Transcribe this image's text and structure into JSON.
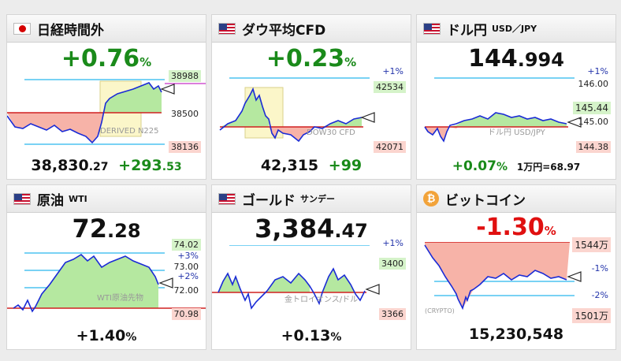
{
  "colors": {
    "up": "#1a8a1a",
    "down": "#e01010",
    "area_up": "#b5e8a0",
    "area_down": "#f7b3a8",
    "line": "#1a2bd6",
    "ref_line": "#d02020",
    "band_line": "#4dc3f0"
  },
  "cards": [
    {
      "title": "日経時間外",
      "subtitle": "",
      "flag": "jp-flag-icon",
      "change": "+0.76",
      "change_unit": "%",
      "labels": {
        "top": "38988",
        "mid": "38500",
        "bottom": "38136"
      },
      "watermark": "DERIVED N225",
      "bottom": {
        "price_main": "38,830",
        "price_dec": ".27",
        "delta_main": "+293",
        "delta_dec": ".53"
      }
    },
    {
      "title": "ダウ平均CFD",
      "subtitle": "",
      "flag": "us-flag-icon",
      "change": "+0.23",
      "change_unit": "%",
      "labels": {
        "pct": "+1%",
        "top": "42534",
        "bottom": "42071"
      },
      "watermark": "DOW30 CFD",
      "bottom": {
        "price": "42,315",
        "delta": "+99"
      }
    },
    {
      "title": "ドル円",
      "subtitle": "USD／JPY",
      "flag": "us-flag-icon",
      "price_main": "144",
      "price_dec": ".994",
      "labels": {
        "pct": "+1%",
        "top": "146.00",
        "mid": "145.44",
        "mid2": "145.00",
        "bottom": "144.38"
      },
      "watermark": "ドル円 USD/JPY",
      "bottom": {
        "change": "+0.07",
        "change_unit": "%",
        "conv": "1万円=68.97"
      }
    },
    {
      "title": "原油",
      "subtitle": "WTI",
      "flag": "us-flag-icon",
      "price_main": "72",
      "price_dec": ".28",
      "labels": {
        "top": "74.02",
        "p3": "+3%",
        "mid": "73.00",
        "p2": "+2%",
        "low": "72.00",
        "bottom": "70.98"
      },
      "watermark": "WTI原油先物",
      "bottom": {
        "change": "+1.40",
        "change_unit": "%"
      }
    },
    {
      "title": "ゴールド",
      "subtitle": "サンデー",
      "flag": "us-flag-icon",
      "price_main": "3,384",
      "price_dec": ".47",
      "labels": {
        "pct": "+1%",
        "top": "3400",
        "bottom": "3366"
      },
      "watermark": "金トロイオンス/ドル",
      "bottom": {
        "change": "+0.13",
        "change_unit": "%"
      }
    },
    {
      "title": "ビットコイン",
      "subtitle": "",
      "flag": "bitcoin-icon",
      "btc_symbol": "₿",
      "change": "-1.30",
      "change_unit": "%",
      "labels": {
        "top": "1544万",
        "m1": "-1%",
        "m2": "-2%",
        "bottom": "1501万"
      },
      "watermark": "(CRYPTO)",
      "bottom": {
        "price": "15,230,548"
      }
    }
  ]
}
